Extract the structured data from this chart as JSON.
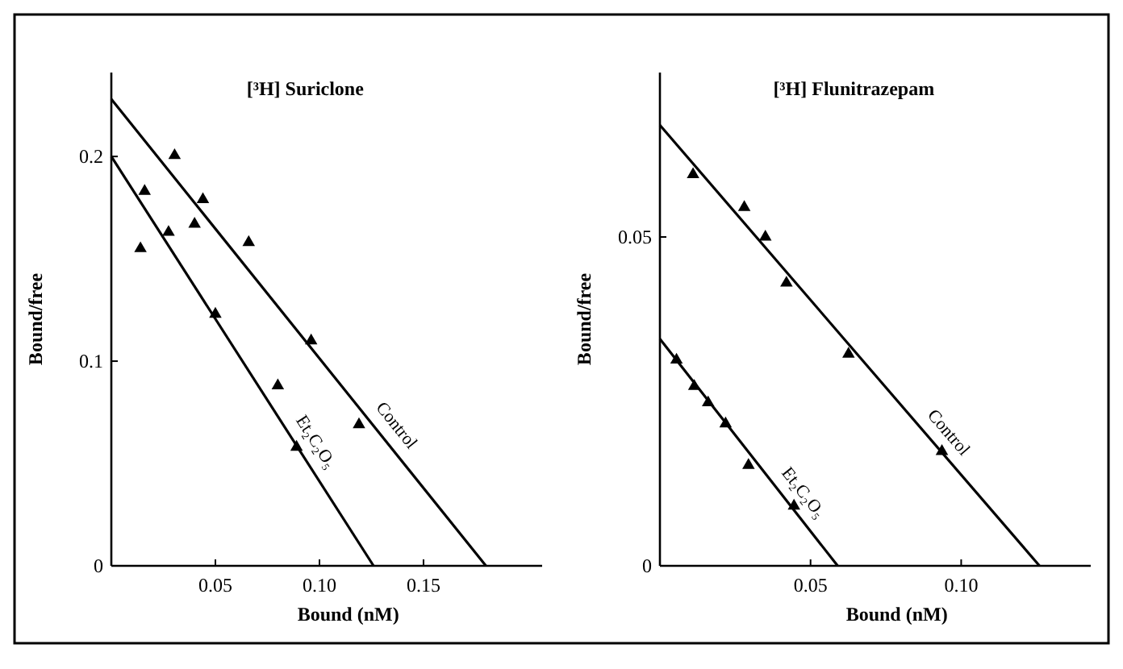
{
  "chart_data": [
    {
      "type": "scatter",
      "title": "[³H] Suriclone",
      "xlabel": "Bound (nM)",
      "ylabel": "Bound/free",
      "xlim": [
        0,
        0.207
      ],
      "ylim": [
        0,
        0.241
      ],
      "xticks": [
        {
          "value": 0.05,
          "label": "0.05"
        },
        {
          "value": 0.1,
          "label": "0.10"
        },
        {
          "value": 0.15,
          "label": "0.15"
        }
      ],
      "yticks": [
        0,
        0.1,
        0.2
      ],
      "marker": "triangle",
      "series": [
        {
          "color": "#000000",
          "x": [
            0.0304,
            0.044,
            0.066,
            0.096,
            0.119
          ],
          "values": [
            0.2005,
            0.179,
            0.158,
            0.11,
            0.069
          ]
        },
        {
          "color": "#000000",
          "x": [
            0.014,
            0.016,
            0.0275,
            0.04,
            0.05,
            0.08,
            0.089
          ],
          "values": [
            0.155,
            0.183,
            0.163,
            0.167,
            0.123,
            0.088,
            0.058
          ]
        },
        {
          "type": "line",
          "name": "Control",
          "marker": "none",
          "color": "#000000",
          "x": [
            0,
            0.18
          ],
          "values": [
            0.228,
            0
          ]
        },
        {
          "type": "line",
          "name": "Et₂C₂O₅",
          "marker": "none",
          "color": "#000000",
          "x": [
            0,
            0.126
          ],
          "values": [
            0.2,
            0
          ]
        }
      ]
    },
    {
      "type": "scatter",
      "title": "[³H] Flunitrazepam",
      "xlabel": "Bound (nM)",
      "ylabel": "Bound/free",
      "xlim": [
        0,
        0.143
      ],
      "ylim": [
        0,
        0.075
      ],
      "xticks": [
        {
          "value": 0.05,
          "label": "0.05"
        },
        {
          "value": 0.1,
          "label": "0.10"
        }
      ],
      "yticks": [
        0,
        0.05
      ],
      "marker": "triangle",
      "series": [
        {
          "color": "#000000",
          "x": [
            0.011,
            0.028,
            0.035,
            0.042,
            0.0626,
            0.0936
          ],
          "values": [
            0.0595,
            0.0545,
            0.05,
            0.043,
            0.0322,
            0.0174
          ]
        },
        {
          "color": "#000000",
          "x": [
            0.0055,
            0.0114,
            0.016,
            0.0218,
            0.0294,
            0.0445
          ],
          "values": [
            0.0313,
            0.0273,
            0.0248,
            0.0216,
            0.0153,
            0.0091
          ]
        },
        {
          "type": "line",
          "name": "Control",
          "marker": "none",
          "color": "#000000",
          "x": [
            0,
            0.126
          ],
          "values": [
            0.067,
            0
          ]
        },
        {
          "type": "line",
          "name": "Et₂C₂O₅",
          "marker": "none",
          "color": "#000000",
          "x": [
            0,
            0.059
          ],
          "values": [
            0.0345,
            0
          ]
        }
      ]
    }
  ]
}
